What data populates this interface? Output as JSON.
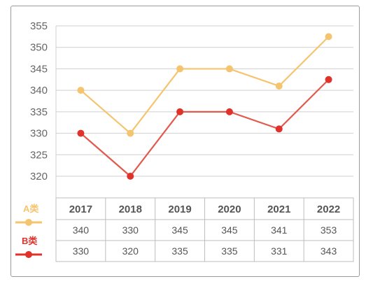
{
  "chart_data": {
    "type": "line",
    "title": "",
    "xlabel": "",
    "ylabel": "",
    "categories": [
      "2017",
      "2018",
      "2019",
      "2020",
      "2021",
      "2022"
    ],
    "y_ticks": [
      "320",
      "325",
      "330",
      "335",
      "340",
      "345",
      "350",
      "355"
    ],
    "ylim": [
      315,
      355
    ],
    "grid": true,
    "legend": "bottom-left, beside data table",
    "series": [
      {
        "name": "A类",
        "color": "#f5c46e",
        "values": [
          340,
          330,
          345,
          345,
          341,
          352.5
        ],
        "table_values": [
          "340",
          "330",
          "345",
          "345",
          "341",
          "353"
        ]
      },
      {
        "name": "B类",
        "color": "#e0322b",
        "line_color": "#e25a4e",
        "values": [
          330,
          320,
          335,
          335,
          331,
          342.5
        ],
        "table_values": [
          "330",
          "320",
          "335",
          "335",
          "331",
          "343"
        ]
      }
    ]
  }
}
